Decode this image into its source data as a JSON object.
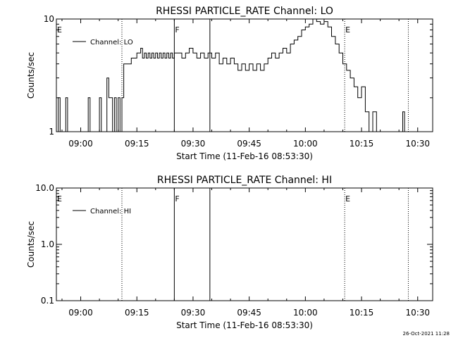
{
  "footer_timestamp": "26-Oct-2021 11:28",
  "chart_data": [
    {
      "type": "line",
      "title": "RHESSI PARTICLE_RATE Channel: LO",
      "xlabel": "Start Time (11-Feb-16 08:53:30)",
      "ylabel": "Counts/sec",
      "y_scale": "log",
      "xlim": [
        "08:53:30",
        "10:34:00"
      ],
      "ylim": [
        1,
        10
      ],
      "x_ticks": [
        "09:00",
        "09:15",
        "09:30",
        "09:45",
        "10:00",
        "10:15",
        "10:30"
      ],
      "y_ticks": [
        "1",
        "10"
      ],
      "legend": {
        "placement": "top-left",
        "entries": [
          "Channel: LO"
        ]
      },
      "markers": [
        {
          "time": "08:53:30",
          "label": "E",
          "style": "none"
        },
        {
          "time": "09:11:00",
          "label": "",
          "style": "dotted"
        },
        {
          "time": "09:25:00",
          "label": "F",
          "style": "solid"
        },
        {
          "time": "09:34:30",
          "label": "",
          "style": "solid"
        },
        {
          "time": "10:10:30",
          "label": "E",
          "style": "dotted"
        },
        {
          "time": "10:27:30",
          "label": "",
          "style": "dotted"
        }
      ],
      "series": [
        {
          "values": [
            [
              "08:53:30",
              1
            ],
            [
              "08:54:00",
              2
            ],
            [
              "08:54:30",
              1
            ],
            [
              "08:56:00",
              2
            ],
            [
              "08:56:30",
              1
            ],
            [
              "09:02:00",
              2
            ],
            [
              "09:02:30",
              1
            ],
            [
              "09:05:00",
              2
            ],
            [
              "09:05:30",
              1
            ],
            [
              "09:07:00",
              3
            ],
            [
              "09:07:30",
              2
            ],
            [
              "09:08:00",
              2
            ],
            [
              "09:08:30",
              1
            ],
            [
              "09:09:00",
              2
            ],
            [
              "09:09:30",
              1
            ],
            [
              "09:10:00",
              2
            ],
            [
              "09:10:30",
              1
            ],
            [
              "09:11:00",
              2
            ],
            [
              "09:11:30",
              4
            ],
            [
              "09:13:30",
              4.5
            ],
            [
              "09:15:00",
              5
            ],
            [
              "09:16:00",
              5.5
            ],
            [
              "09:16:30",
              4.5
            ],
            [
              "09:17:00",
              5
            ],
            [
              "09:17:30",
              4.5
            ],
            [
              "09:18:00",
              5
            ],
            [
              "09:18:30",
              4.5
            ],
            [
              "09:19:00",
              5
            ],
            [
              "09:19:30",
              4.5
            ],
            [
              "09:20:00",
              5
            ],
            [
              "09:20:30",
              4.5
            ],
            [
              "09:21:00",
              5
            ],
            [
              "09:21:30",
              4.5
            ],
            [
              "09:22:00",
              5
            ],
            [
              "09:22:30",
              4.5
            ],
            [
              "09:23:00",
              5
            ],
            [
              "09:23:30",
              4.5
            ],
            [
              "09:24:00",
              5
            ],
            [
              "09:24:30",
              4.5
            ],
            [
              "09:25:00",
              5
            ],
            [
              "09:26:00",
              5
            ],
            [
              "09:27:00",
              4.5
            ],
            [
              "09:28:00",
              5
            ],
            [
              "09:29:00",
              5.5
            ],
            [
              "09:30:00",
              5
            ],
            [
              "09:31:00",
              4.5
            ],
            [
              "09:32:00",
              5
            ],
            [
              "09:33:00",
              4.5
            ],
            [
              "09:34:00",
              5
            ],
            [
              "09:35:00",
              4.5
            ],
            [
              "09:36:00",
              5
            ],
            [
              "09:37:00",
              4
            ],
            [
              "09:38:00",
              4.5
            ],
            [
              "09:39:00",
              4
            ],
            [
              "09:40:00",
              4.5
            ],
            [
              "09:41:00",
              4
            ],
            [
              "09:42:00",
              3.5
            ],
            [
              "09:43:00",
              4
            ],
            [
              "09:44:00",
              3.5
            ],
            [
              "09:45:00",
              4
            ],
            [
              "09:46:00",
              3.5
            ],
            [
              "09:47:00",
              4
            ],
            [
              "09:48:00",
              3.5
            ],
            [
              "09:49:00",
              4
            ],
            [
              "09:50:00",
              4.5
            ],
            [
              "09:51:00",
              5
            ],
            [
              "09:52:00",
              4.5
            ],
            [
              "09:53:00",
              5
            ],
            [
              "09:54:00",
              5.5
            ],
            [
              "09:55:00",
              5
            ],
            [
              "09:56:00",
              6
            ],
            [
              "09:57:00",
              6.5
            ],
            [
              "09:58:00",
              7
            ],
            [
              "09:59:00",
              8
            ],
            [
              "10:00:00",
              8.5
            ],
            [
              "10:01:00",
              9
            ],
            [
              "10:02:00",
              10
            ],
            [
              "10:03:00",
              9.5
            ],
            [
              "10:04:00",
              9
            ],
            [
              "10:05:00",
              9.5
            ],
            [
              "10:06:00",
              8.5
            ],
            [
              "10:07:00",
              7
            ],
            [
              "10:08:00",
              6
            ],
            [
              "10:09:00",
              5
            ],
            [
              "10:10:00",
              4
            ],
            [
              "10:11:00",
              3.5
            ],
            [
              "10:12:00",
              3
            ],
            [
              "10:13:00",
              2.5
            ],
            [
              "10:14:00",
              2
            ],
            [
              "10:15:00",
              2.5
            ],
            [
              "10:16:00",
              1.5
            ],
            [
              "10:17:00",
              1
            ],
            [
              "10:18:00",
              1.5
            ],
            [
              "10:19:00",
              1
            ],
            [
              "10:26:00",
              1.5
            ],
            [
              "10:26:30",
              1
            ]
          ]
        }
      ]
    },
    {
      "type": "line",
      "title": "RHESSI PARTICLE_RATE Channel: HI",
      "xlabel": "Start Time (11-Feb-16 08:53:30)",
      "ylabel": "Counts/sec",
      "y_scale": "log",
      "xlim": [
        "08:53:30",
        "10:34:00"
      ],
      "ylim": [
        0.1,
        10
      ],
      "x_ticks": [
        "09:00",
        "09:15",
        "09:30",
        "09:45",
        "10:00",
        "10:15",
        "10:30"
      ],
      "y_ticks": [
        "0.1",
        "1.0",
        "10.0"
      ],
      "legend": {
        "placement": "top-left",
        "entries": [
          "Channel: HI"
        ]
      },
      "markers": [
        {
          "time": "08:53:30",
          "label": "E",
          "style": "none"
        },
        {
          "time": "09:11:00",
          "label": "",
          "style": "dotted"
        },
        {
          "time": "09:25:00",
          "label": "F",
          "style": "solid"
        },
        {
          "time": "09:34:30",
          "label": "",
          "style": "solid"
        },
        {
          "time": "10:10:30",
          "label": "E",
          "style": "dotted"
        },
        {
          "time": "10:27:30",
          "label": "",
          "style": "dotted"
        }
      ],
      "series": [
        {
          "values": []
        }
      ]
    }
  ]
}
